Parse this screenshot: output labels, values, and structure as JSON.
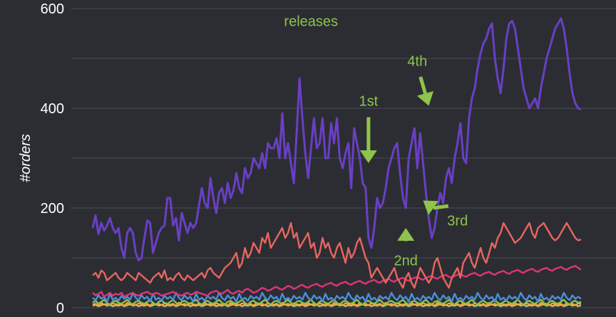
{
  "chart_data": {
    "type": "line",
    "title": "",
    "xlabel": "",
    "ylabel": "#orders",
    "ylim": [
      0,
      600
    ],
    "yticks": [
      0,
      200,
      400,
      600
    ],
    "grid": true,
    "n_points": 171,
    "series": [
      {
        "color": "#6a3fc3",
        "values": [
          160,
          185,
          148,
          170,
          155,
          165,
          180,
          160,
          150,
          160,
          120,
          100,
          150,
          160,
          150,
          110,
          95,
          100,
          140,
          175,
          170,
          110,
          130,
          150,
          160,
          165,
          220,
          220,
          165,
          180,
          135,
          190,
          170,
          150,
          170,
          160,
          170,
          205,
          240,
          210,
          200,
          260,
          220,
          190,
          230,
          240,
          210,
          250,
          220,
          235,
          270,
          240,
          230,
          280,
          260,
          270,
          300,
          290,
          280,
          310,
          280,
          330,
          320,
          320,
          340,
          300,
          390,
          300,
          330,
          290,
          250,
          350,
          460,
          380,
          310,
          260,
          320,
          380,
          320,
          330,
          380,
          300,
          300,
          370,
          330,
          380,
          300,
          280,
          310,
          330,
          240,
          360,
          330,
          300,
          250,
          240,
          140,
          120,
          160,
          220,
          200,
          210,
          240,
          280,
          300,
          320,
          330,
          270,
          220,
          200,
          300,
          330,
          360,
          280,
          350,
          290,
          230,
          180,
          140,
          160,
          200,
          230,
          210,
          260,
          280,
          250,
          300,
          330,
          370,
          300,
          290,
          380,
          420,
          440,
          480,
          510,
          530,
          540,
          560,
          570,
          500,
          460,
          430,
          480,
          540,
          570,
          575,
          560,
          520,
          480,
          440,
          420,
          400,
          410,
          420,
          400,
          440,
          470,
          500,
          520,
          540,
          560,
          570,
          580,
          560,
          520,
          470,
          430,
          410,
          400,
          398
        ]
      },
      {
        "color": "#e8665e",
        "values": [
          65,
          70,
          60,
          75,
          70,
          55,
          60,
          65,
          70,
          60,
          55,
          60,
          70,
          65,
          60,
          55,
          70,
          65,
          60,
          55,
          50,
          60,
          65,
          70,
          60,
          75,
          55,
          60,
          55,
          65,
          70,
          60,
          55,
          65,
          60,
          55,
          60,
          65,
          70,
          60,
          75,
          80,
          70,
          65,
          60,
          70,
          80,
          85,
          90,
          100,
          110,
          80,
          90,
          120,
          100,
          110,
          130,
          120,
          110,
          140,
          130,
          150,
          120,
          130,
          140,
          150,
          160,
          140,
          150,
          170,
          140,
          150,
          120,
          130,
          140,
          150,
          120,
          130,
          100,
          110,
          140,
          120,
          130,
          110,
          100,
          120,
          130,
          110,
          90,
          120,
          100,
          110,
          130,
          140,
          120,
          100,
          90,
          60,
          70,
          80,
          70,
          60,
          50,
          60,
          70,
          80,
          60,
          50,
          40,
          60,
          70,
          50,
          40,
          60,
          80,
          70,
          60,
          50,
          60,
          90,
          100,
          80,
          60,
          50,
          40,
          60,
          70,
          80,
          60,
          90,
          100,
          110,
          90,
          80,
          100,
          120,
          100,
          90,
          110,
          130,
          120,
          140,
          150,
          170,
          160,
          150,
          140,
          130,
          135,
          140,
          150,
          160,
          170,
          150,
          140,
          160,
          165,
          170,
          160,
          150,
          140,
          135,
          140,
          150,
          160,
          170,
          160,
          150,
          140,
          135,
          137
        ]
      },
      {
        "color": "#e0357a",
        "values": [
          30,
          25,
          28,
          32,
          22,
          26,
          30,
          24,
          28,
          26,
          30,
          22,
          25,
          28,
          30,
          26,
          24,
          28,
          30,
          32,
          28,
          26,
          30,
          28,
          24,
          26,
          28,
          30,
          32,
          28,
          26,
          24,
          28,
          30,
          26,
          28,
          32,
          30,
          28,
          26,
          24,
          30,
          32,
          34,
          30,
          28,
          32,
          36,
          30,
          28,
          32,
          34,
          30,
          36,
          38,
          34,
          30,
          32,
          36,
          40,
          38,
          34,
          36,
          40,
          42,
          38,
          36,
          40,
          44,
          42,
          38,
          40,
          44,
          46,
          42,
          40,
          44,
          46,
          48,
          44,
          42,
          46,
          48,
          50,
          46,
          44,
          48,
          50,
          52,
          48,
          46,
          50,
          52,
          54,
          50,
          48,
          52,
          54,
          56,
          52,
          50,
          54,
          56,
          58,
          54,
          52,
          56,
          58,
          60,
          56,
          54,
          58,
          60,
          62,
          58,
          56,
          60,
          62,
          64,
          60,
          58,
          62,
          64,
          66,
          62,
          60,
          64,
          66,
          68,
          64,
          62,
          66,
          68,
          70,
          66,
          64,
          68,
          70,
          72,
          68,
          66,
          70,
          72,
          74,
          70,
          68,
          72,
          74,
          76,
          72,
          70,
          74,
          76,
          78,
          74,
          72,
          76,
          78,
          80,
          76,
          74,
          78,
          80,
          82,
          78,
          76,
          80,
          82,
          84,
          80,
          76
        ]
      },
      {
        "color": "#4a90d9",
        "values": [
          20,
          15,
          25,
          18,
          22,
          12,
          28,
          16,
          20,
          14,
          24,
          18,
          22,
          16,
          30,
          20,
          15,
          25,
          18,
          22,
          12,
          28,
          16,
          20,
          14,
          24,
          18,
          22,
          16,
          30,
          20,
          15,
          25,
          18,
          22,
          12,
          28,
          16,
          20,
          14,
          24,
          18,
          22,
          16,
          30,
          20,
          15,
          25,
          18,
          22,
          12,
          28,
          16,
          20,
          14,
          24,
          18,
          22,
          16,
          30,
          20,
          15,
          25,
          18,
          22,
          12,
          28,
          16,
          20,
          14,
          24,
          18,
          22,
          16,
          30,
          20,
          15,
          25,
          18,
          22,
          12,
          28,
          16,
          20,
          14,
          24,
          18,
          22,
          16,
          30,
          20,
          15,
          25,
          18,
          22,
          12,
          28,
          16,
          20,
          14,
          24,
          18,
          22,
          16,
          30,
          20,
          15,
          25,
          18,
          22,
          12,
          28,
          16,
          20,
          14,
          24,
          18,
          22,
          16,
          30,
          20,
          15,
          25,
          18,
          22,
          12,
          28,
          16,
          20,
          14,
          24,
          18,
          22,
          16,
          30,
          20,
          15,
          25,
          18,
          22,
          12,
          28,
          16,
          20,
          14,
          24,
          18,
          22,
          16,
          30,
          20,
          15,
          25,
          18,
          22,
          12,
          28,
          16,
          20,
          14,
          24,
          18,
          22,
          16,
          30,
          20,
          15,
          25,
          18,
          22,
          18
        ]
      },
      {
        "color": "#8fc34a",
        "values": [
          10,
          14,
          8,
          12,
          16,
          10,
          6,
          12,
          14,
          10,
          8,
          12,
          16,
          10,
          6,
          12,
          14,
          10,
          8,
          12,
          16,
          10,
          6,
          12,
          14,
          10,
          8,
          12,
          16,
          10,
          6,
          12,
          14,
          10,
          8,
          12,
          16,
          10,
          6,
          12,
          14,
          10,
          8,
          12,
          16,
          10,
          6,
          12,
          14,
          10,
          8,
          12,
          16,
          10,
          6,
          12,
          14,
          10,
          8,
          12,
          16,
          10,
          6,
          12,
          14,
          10,
          8,
          12,
          16,
          10,
          6,
          12,
          14,
          10,
          8,
          12,
          16,
          10,
          6,
          12,
          14,
          10,
          8,
          12,
          16,
          10,
          6,
          12,
          14,
          10,
          8,
          12,
          16,
          10,
          6,
          12,
          14,
          10,
          8,
          12,
          16,
          10,
          6,
          12,
          14,
          10,
          8,
          12,
          16,
          10,
          6,
          12,
          14,
          10,
          8,
          12,
          16,
          10,
          6,
          12,
          14,
          10,
          8,
          12,
          16,
          10,
          6,
          12,
          14,
          10,
          8,
          12,
          16,
          10,
          6,
          12,
          14,
          10,
          8,
          12,
          16,
          10,
          6,
          12,
          14,
          10,
          8,
          12,
          16,
          10,
          6,
          12,
          14,
          10,
          8,
          12,
          16,
          10,
          6,
          12,
          14,
          10,
          8,
          12,
          16,
          10,
          6,
          12,
          14,
          10,
          12
        ]
      },
      {
        "color": "#f0a830",
        "values": [
          6,
          8,
          4,
          10,
          6,
          8,
          5,
          9,
          7,
          6,
          8,
          4,
          10,
          6,
          8,
          5,
          9,
          7,
          6,
          8,
          4,
          10,
          6,
          8,
          5,
          9,
          7,
          6,
          8,
          4,
          10,
          6,
          8,
          5,
          9,
          7,
          6,
          8,
          4,
          10,
          6,
          8,
          5,
          9,
          7,
          6,
          8,
          4,
          10,
          6,
          8,
          5,
          9,
          7,
          6,
          8,
          4,
          10,
          6,
          8,
          5,
          9,
          7,
          6,
          8,
          4,
          10,
          6,
          8,
          5,
          9,
          7,
          6,
          8,
          4,
          10,
          6,
          8,
          5,
          9,
          7,
          6,
          8,
          4,
          10,
          6,
          8,
          5,
          9,
          7,
          6,
          8,
          4,
          10,
          6,
          8,
          5,
          9,
          7,
          6,
          8,
          4,
          10,
          6,
          8,
          5,
          9,
          7,
          6,
          8,
          4,
          10,
          6,
          8,
          5,
          9,
          7,
          6,
          8,
          4,
          10,
          6,
          8,
          5,
          9,
          7,
          6,
          8,
          4,
          10,
          6,
          8,
          5,
          9,
          7,
          6,
          8,
          4,
          10,
          6,
          8,
          5,
          9,
          7,
          6,
          8,
          4,
          10,
          6,
          8,
          5,
          9,
          7,
          6,
          8,
          4,
          10,
          6,
          8,
          5,
          9,
          7,
          6,
          8,
          4,
          10,
          6,
          8,
          5,
          9,
          8
        ]
      },
      {
        "color": "#c8b890",
        "values": [
          4,
          6,
          3,
          5,
          7,
          4,
          6,
          3,
          5,
          4,
          6,
          3,
          5,
          7,
          4,
          6,
          3,
          5,
          4,
          6,
          3,
          5,
          7,
          4,
          6,
          3,
          5,
          4,
          6,
          3,
          5,
          7,
          4,
          6,
          3,
          5,
          4,
          6,
          3,
          5,
          7,
          4,
          6,
          3,
          5,
          4,
          6,
          3,
          5,
          7,
          4,
          6,
          3,
          5,
          4,
          6,
          3,
          5,
          7,
          4,
          6,
          3,
          5,
          4,
          6,
          3,
          5,
          7,
          4,
          6,
          3,
          5,
          4,
          6,
          3,
          5,
          7,
          4,
          6,
          3,
          5,
          4,
          6,
          3,
          5,
          7,
          4,
          6,
          3,
          5,
          4,
          6,
          3,
          5,
          7,
          4,
          6,
          3,
          5,
          4,
          6,
          3,
          5,
          7,
          4,
          6,
          3,
          5,
          4,
          6,
          3,
          5,
          7,
          4,
          6,
          3,
          5,
          4,
          6,
          3,
          5,
          7,
          4,
          6,
          3,
          5,
          4,
          6,
          3,
          5,
          7,
          4,
          6,
          3,
          5,
          4,
          6,
          3,
          5,
          7,
          4,
          6,
          3,
          5,
          4,
          6,
          3,
          5,
          7,
          4,
          6,
          3,
          5,
          4,
          6,
          3,
          5,
          7,
          4,
          6,
          3,
          5,
          4,
          6,
          3,
          5,
          7,
          4,
          6,
          3,
          5
        ]
      }
    ],
    "annotations": [
      {
        "text": "releases",
        "x_index": 76,
        "y_value": 565,
        "arrow": false
      },
      {
        "text": "1st",
        "x_index": 96,
        "y_value": 405,
        "arrow": true,
        "tip_index": 96,
        "tip_value": 290
      },
      {
        "text": "2nd",
        "x_index": 109,
        "y_value": 85,
        "arrow": true,
        "tip_index": 109,
        "tip_value": 160
      },
      {
        "text": "3rd",
        "x_index": 127,
        "y_value": 165,
        "arrow": true,
        "tip_index": 115,
        "tip_value": 215
      },
      {
        "text": "4th",
        "x_index": 113,
        "y_value": 485,
        "arrow": true,
        "tip_index": 117,
        "tip_value": 405
      }
    ]
  },
  "colors": {
    "background": "#2b2d33",
    "grid": "#4a4d55",
    "text": "#ffffff",
    "annotation": "#8fc34a"
  }
}
